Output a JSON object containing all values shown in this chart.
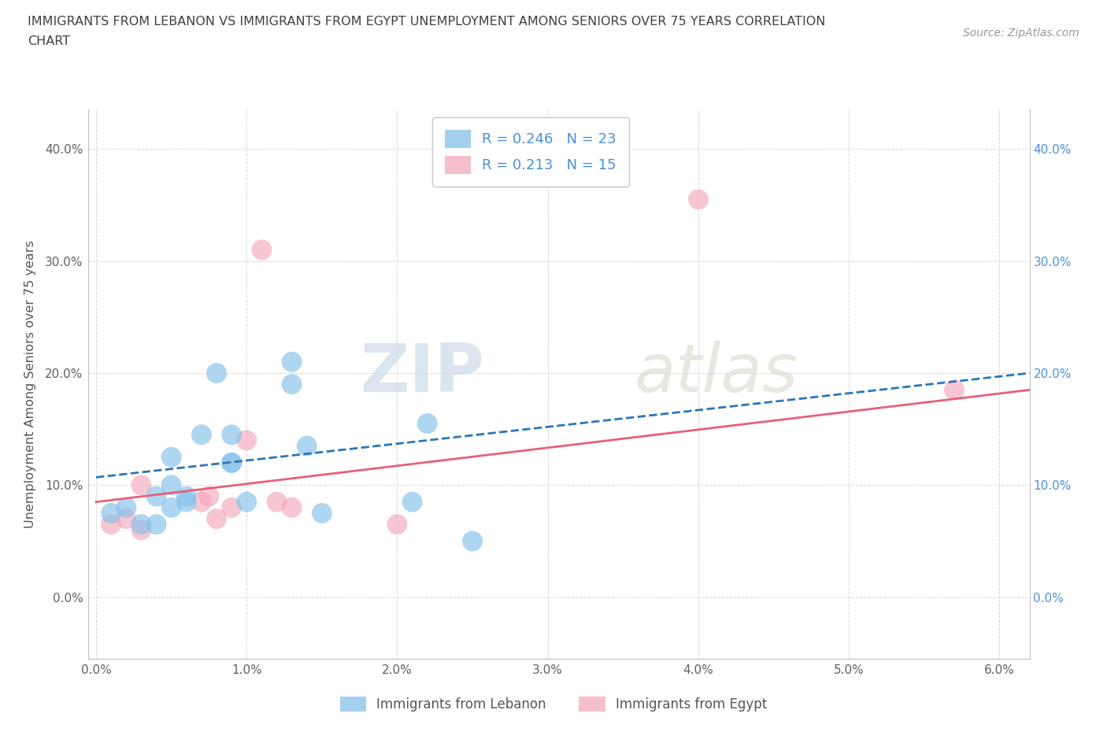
{
  "title_line1": "IMMIGRANTS FROM LEBANON VS IMMIGRANTS FROM EGYPT UNEMPLOYMENT AMONG SENIORS OVER 75 YEARS CORRELATION",
  "title_line2": "CHART",
  "source": "Source: ZipAtlas.com",
  "ylabel": "Unemployment Among Seniors over 75 years",
  "xlim": [
    -0.0005,
    0.062
  ],
  "ylim": [
    -0.055,
    0.435
  ],
  "xticks": [
    0.0,
    0.01,
    0.02,
    0.03,
    0.04,
    0.05,
    0.06
  ],
  "xticklabels": [
    "0.0%",
    "1.0%",
    "2.0%",
    "3.0%",
    "4.0%",
    "5.0%",
    "6.0%"
  ],
  "yticks": [
    0.0,
    0.1,
    0.2,
    0.3,
    0.4
  ],
  "yticklabels": [
    "0.0%",
    "10.0%",
    "20.0%",
    "30.0%",
    "40.0%"
  ],
  "lebanon_color": "#85C1EA",
  "egypt_color": "#F2A8BC",
  "lebanon_R": 0.246,
  "lebanon_N": 23,
  "egypt_R": 0.213,
  "egypt_N": 15,
  "lebanon_x": [
    0.001,
    0.002,
    0.003,
    0.004,
    0.004,
    0.005,
    0.005,
    0.005,
    0.006,
    0.006,
    0.007,
    0.008,
    0.009,
    0.009,
    0.009,
    0.01,
    0.013,
    0.013,
    0.014,
    0.015,
    0.021,
    0.022,
    0.025
  ],
  "lebanon_y": [
    0.075,
    0.08,
    0.065,
    0.065,
    0.09,
    0.08,
    0.1,
    0.125,
    0.09,
    0.085,
    0.145,
    0.2,
    0.12,
    0.12,
    0.145,
    0.085,
    0.19,
    0.21,
    0.135,
    0.075,
    0.085,
    0.155,
    0.05
  ],
  "egypt_x": [
    0.001,
    0.002,
    0.003,
    0.003,
    0.007,
    0.0075,
    0.008,
    0.009,
    0.01,
    0.011,
    0.012,
    0.013,
    0.02,
    0.04,
    0.057
  ],
  "egypt_y": [
    0.065,
    0.07,
    0.06,
    0.1,
    0.085,
    0.09,
    0.07,
    0.08,
    0.14,
    0.31,
    0.085,
    0.08,
    0.065,
    0.355,
    0.185
  ],
  "lebanon_trend_x": [
    0.0,
    0.062
  ],
  "lebanon_trend_y": [
    0.107,
    0.2
  ],
  "egypt_trend_x": [
    0.0,
    0.062
  ],
  "egypt_trend_y": [
    0.085,
    0.185
  ],
  "lebanon_line_color": "#2E75B6",
  "lebanon_line_style": "--",
  "egypt_line_color": "#E8607A",
  "egypt_line_style": "-",
  "watermark_zip": "ZIP",
  "watermark_atlas": "atlas",
  "scatter_size": 350,
  "background_color": "#ffffff",
  "grid_color": "#d8d8d8",
  "title_color": "#404040",
  "label_color": "#555555",
  "tick_color_left": "#606060",
  "tick_color_right": "#4a90d9",
  "legend_text_color": "#4a90d9",
  "bottom_legend_label_lebanon": "Immigrants from Lebanon",
  "bottom_legend_label_egypt": "Immigrants from Egypt"
}
